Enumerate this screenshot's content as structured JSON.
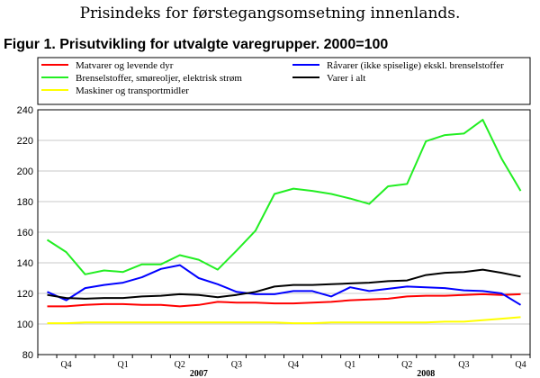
{
  "page": {
    "heading": "Prisindeks for førstegangsomsetning innenlands."
  },
  "chart_data": {
    "type": "line",
    "title": "Figur 1. Prisutvikling for utvalgte varegrupper. 2000=100",
    "xlabel": "",
    "ylabel": "",
    "ylim": [
      80,
      240
    ],
    "yticks": [
      80,
      100,
      120,
      140,
      160,
      180,
      200,
      220,
      240
    ],
    "grid": true,
    "legend_position": "top",
    "x": [
      "2006-10",
      "2006-11",
      "2006-12",
      "2007-01",
      "2007-02",
      "2007-03",
      "2007-04",
      "2007-05",
      "2007-06",
      "2007-07",
      "2007-08",
      "2007-09",
      "2007-10",
      "2007-11",
      "2007-12",
      "2008-01",
      "2008-02",
      "2008-03",
      "2008-04",
      "2008-05",
      "2008-06",
      "2008-07",
      "2008-08",
      "2008-09",
      "2008-10",
      "2008-11"
    ],
    "quarter_labels": [
      {
        "label": "Q4",
        "x": "2006-11"
      },
      {
        "label": "Q1",
        "x": "2007-02"
      },
      {
        "label": "Q2",
        "x": "2007-05"
      },
      {
        "label": "Q3",
        "x": "2007-08"
      },
      {
        "label": "Q4",
        "x": "2007-11"
      },
      {
        "label": "Q1",
        "x": "2008-02"
      },
      {
        "label": "Q2",
        "x": "2008-05"
      },
      {
        "label": "Q3",
        "x": "2008-08"
      },
      {
        "label": "Q4",
        "x": "2008-11"
      }
    ],
    "year_labels": [
      {
        "label": "2007",
        "x": "2007-06"
      },
      {
        "label": "2008",
        "x": "2008-06"
      }
    ],
    "series": [
      {
        "name": "Matvarer og levende dyr",
        "color": "#ff0000",
        "values": [
          111.5,
          111.5,
          112.5,
          113,
          113,
          112.5,
          112.5,
          111.5,
          112.5,
          114.5,
          114,
          114,
          113.5,
          113.5,
          114,
          114.5,
          115.5,
          116,
          116.5,
          118,
          118.5,
          118.5,
          119,
          119.5,
          119,
          119.5
        ]
      },
      {
        "name": "Brenselstoffer, smøreoljer, elektrisk strøm",
        "color": "#22ee22",
        "values": [
          155,
          147,
          132.5,
          135,
          134,
          139,
          139,
          145,
          142,
          135.5,
          148,
          161,
          185,
          188.5,
          187,
          185,
          182,
          178.5,
          190,
          191.5,
          219.5,
          223.5,
          224.5,
          233.5,
          208,
          187
        ]
      },
      {
        "name": "Maskiner og transportmidler",
        "color": "#ffff00",
        "values": [
          100.5,
          100.5,
          101,
          101,
          101,
          101,
          101,
          101,
          101,
          101,
          101,
          101,
          101,
          100.5,
          100.5,
          101,
          101,
          101,
          101,
          101,
          101,
          101.5,
          101.5,
          102.5,
          103.5,
          104.5
        ]
      },
      {
        "name": "Råvarer (ikke spiselige) ekskl. brenselstoffer",
        "color": "#0000ff",
        "values": [
          121,
          115.5,
          123.5,
          125.5,
          127,
          130.5,
          136,
          138.5,
          130,
          126,
          121,
          119.5,
          119.5,
          121.5,
          121.5,
          118,
          124,
          121.5,
          123,
          124.5,
          124,
          123.5,
          122,
          121.5,
          120,
          112.5
        ]
      },
      {
        "name": "Varer i alt",
        "color": "#000000",
        "values": [
          119,
          117,
          116.5,
          117,
          117,
          118,
          118.5,
          119.5,
          119,
          117.5,
          119,
          121,
          124.5,
          125.5,
          125.5,
          126,
          126.5,
          127,
          128,
          128.5,
          132,
          133.5,
          134,
          135.5,
          133.5,
          131
        ]
      }
    ]
  }
}
